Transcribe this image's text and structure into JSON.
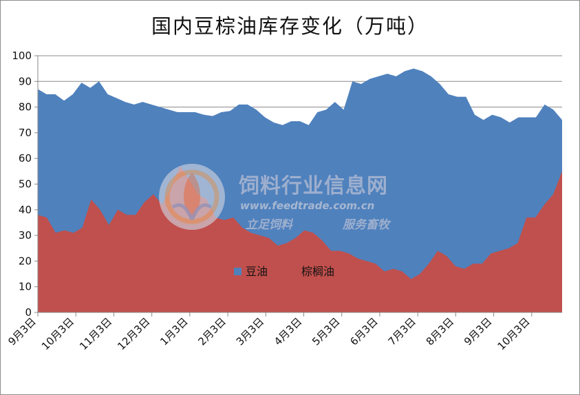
{
  "chart_data": {
    "type": "area",
    "title": "国内豆棕油库存变化（万吨）",
    "xlabel": "",
    "ylabel": "",
    "ylim": [
      0,
      100
    ],
    "yticks": [
      0,
      10,
      20,
      30,
      40,
      50,
      60,
      70,
      80,
      90,
      100
    ],
    "grid": true,
    "legend": "bottom-center",
    "x_tick_labels": [
      "9月3日",
      "10月3日",
      "11月3日",
      "12月3日",
      "1月3日",
      "2月3日",
      "3月3日",
      "4月3日",
      "5月3日",
      "6月3日",
      "7月3日",
      "8月3日",
      "9月3日",
      "10月3日"
    ],
    "x_count": 70,
    "series": [
      {
        "name": "豆油",
        "color": "#4f81bd",
        "values": [
          87,
          85,
          85,
          82.5,
          85,
          89.5,
          87.5,
          90,
          85,
          83.5,
          82,
          81,
          82,
          81,
          80,
          79,
          78,
          78,
          78,
          77,
          76.5,
          78,
          78.5,
          81,
          81,
          79,
          76,
          74,
          73,
          74.5,
          74.5,
          73,
          78,
          79,
          82,
          79,
          90,
          89,
          91,
          92,
          93,
          92,
          94,
          95,
          94,
          92,
          89,
          85,
          84,
          84,
          77,
          75,
          77,
          76,
          74,
          76,
          76,
          76,
          81,
          79,
          75
        ]
      },
      {
        "name": "棕榈油",
        "color": "#c0504d",
        "values": [
          38,
          37,
          31,
          32,
          31,
          33,
          44,
          40,
          34,
          40,
          38,
          38,
          43,
          46,
          42,
          49,
          57,
          52,
          46,
          44,
          37,
          36,
          37,
          33,
          31,
          30,
          29,
          26,
          27,
          29,
          32,
          31,
          28,
          24,
          24,
          23,
          21,
          20,
          19,
          16,
          17,
          16,
          13,
          15,
          19,
          24,
          22,
          18,
          17,
          19,
          19,
          23,
          24,
          25,
          27,
          37,
          37,
          42,
          46,
          55
        ]
      }
    ]
  },
  "watermark": {
    "name": "饲料行业信息网",
    "url": "www.feedtrade.com.cn",
    "slogan_left": "立足饲料",
    "slogan_right": "服务畜牧"
  }
}
